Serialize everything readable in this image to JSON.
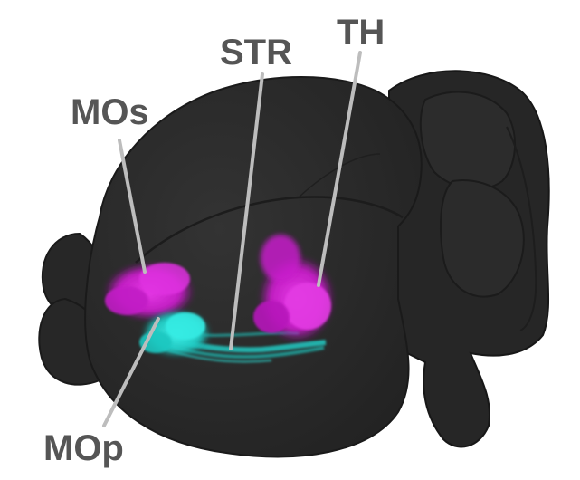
{
  "labels": {
    "mos": "MOs",
    "str": "STR",
    "th": "TH",
    "mop": "MOp"
  },
  "colors": {
    "background": "#ffffff",
    "brain": "#2a2a2a",
    "brain_edge": "#1c1c1c",
    "label_text": "#555555",
    "leader_line": "#bdbdbd",
    "magenta_projection": "#d21fd6",
    "cyan_projection": "#22d6cf"
  }
}
